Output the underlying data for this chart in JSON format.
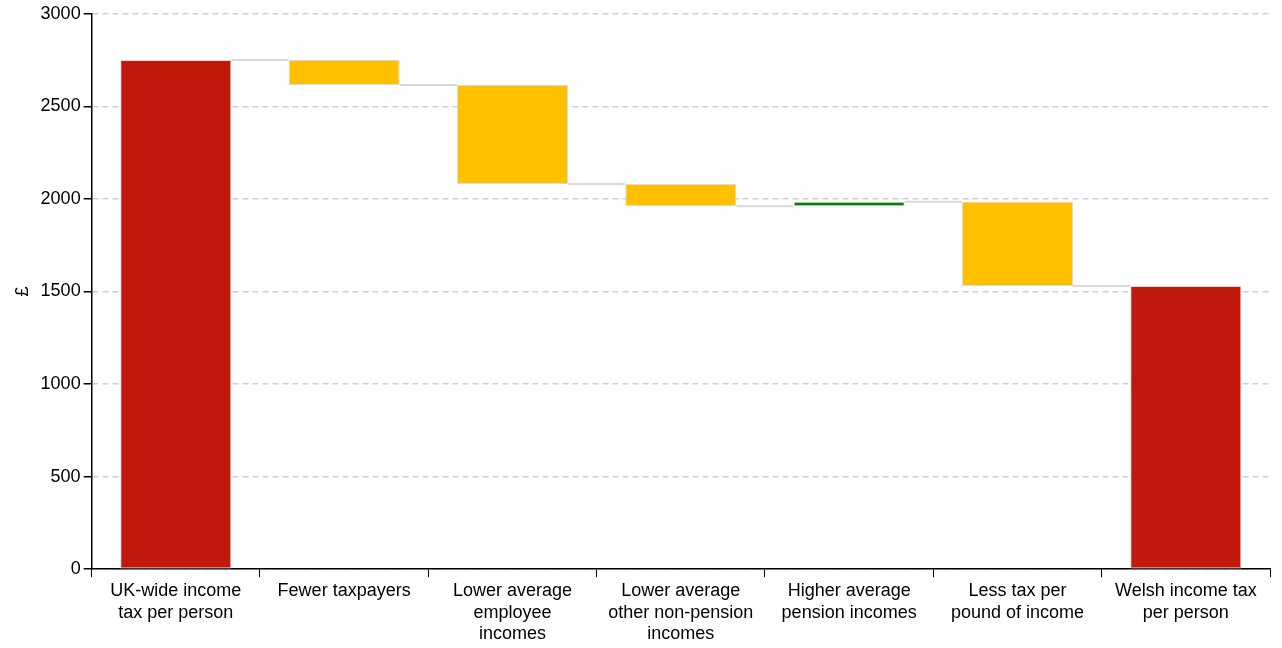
{
  "chart_data": {
    "type": "bar",
    "ylabel": "£",
    "categories": [
      "UK-wide income tax per person",
      "Fewer taxpayers",
      "Lower average employee incomes",
      "Lower average other non-pension incomes",
      "Higher average pension incomes",
      "Less tax per pound of income",
      "Welsh income tax per person"
    ],
    "base": [
      0,
      2750,
      2615,
      2080,
      1960,
      1985,
      0
    ],
    "values": [
      2750,
      -135,
      -535,
      -120,
      25,
      -455,
      1530
    ],
    "colors": [
      "#c0180a",
      "#ffc000",
      "#ffc000",
      "#ffc000",
      "#008000",
      "#ffc000",
      "#c0180a"
    ],
    "ylim": [
      0,
      3000
    ],
    "yticks": [
      0,
      500,
      1000,
      1500,
      2000,
      2500,
      3000
    ],
    "grid": "y",
    "legend": false
  }
}
